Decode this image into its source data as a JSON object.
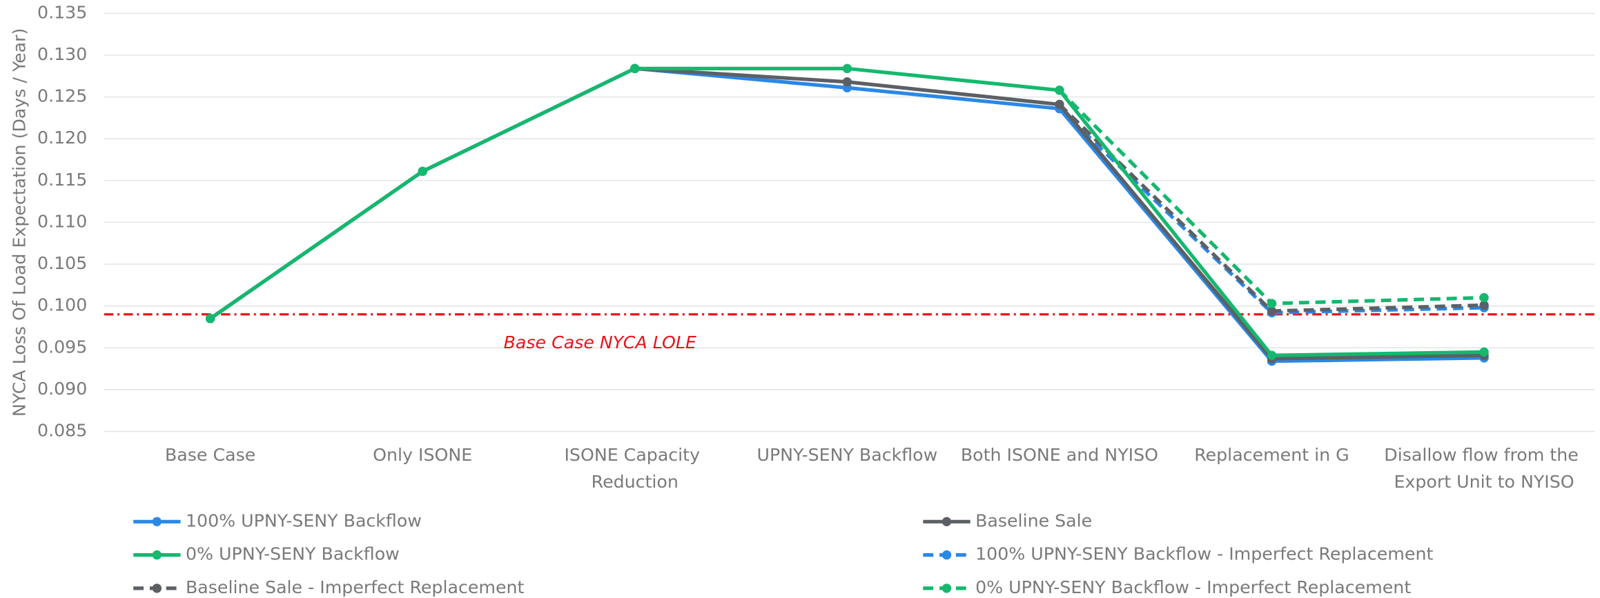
{
  "chart_data": {
    "type": "line",
    "ylabel": "NYCA Loss Of Load Expectation (Days / Year)",
    "categories": [
      "Base Case",
      "Only ISONE",
      "ISONE Capacity Reduction",
      "UPNY-SENY Backflow",
      "Both ISONE and NYISO",
      "Replacement in G",
      "Disallow flow from the Export Unit to NYISO"
    ],
    "series": [
      {
        "name": "100% UPNY-SENY Backflow",
        "color": "#2a88e6",
        "dashed": false,
        "values": [
          0.0985,
          0.1161,
          0.1284,
          0.1261,
          0.1236,
          0.0934,
          0.0938
        ]
      },
      {
        "name": "Baseline Sale",
        "color": "#5c6065",
        "dashed": false,
        "values": [
          0.0985,
          0.1161,
          0.1284,
          0.1268,
          0.1241,
          0.0937,
          0.0941
        ]
      },
      {
        "name": "0% UPNY-SENY Backflow",
        "color": "#14b86e",
        "dashed": false,
        "values": [
          0.0985,
          0.1161,
          0.1284,
          0.1284,
          0.1258,
          0.0941,
          0.0945
        ]
      },
      {
        "name": "100% UPNY-SENY Backflow - Imperfect Replacement",
        "color": "#2a88e6",
        "dashed": true,
        "values": [
          null,
          null,
          null,
          null,
          0.1236,
          0.0992,
          0.0998
        ]
      },
      {
        "name": "Baseline Sale - Imperfect Replacement",
        "color": "#5c6065",
        "dashed": true,
        "values": [
          null,
          null,
          null,
          null,
          0.1241,
          0.0994,
          0.1001
        ]
      },
      {
        "name": "0% UPNY-SENY Backflow - Imperfect Replacement",
        "color": "#14b86e",
        "dashed": true,
        "values": [
          null,
          null,
          null,
          null,
          0.1258,
          0.1003,
          0.101
        ]
      }
    ],
    "reference_line": {
      "value": 0.099,
      "label": "Base Case NYCA LOLE",
      "color": "#e8141a"
    },
    "ylim": [
      0.085,
      0.135
    ],
    "yticks": [
      {
        "value": 0.085,
        "label": "0.085"
      },
      {
        "value": 0.09,
        "label": "0.090"
      },
      {
        "value": 0.095,
        "label": "0.095"
      },
      {
        "value": 0.1,
        "label": "0.100"
      },
      {
        "value": 0.105,
        "label": "0.105"
      },
      {
        "value": 0.11,
        "label": "0.110"
      },
      {
        "value": 0.115,
        "label": "0.115"
      },
      {
        "value": 0.12,
        "label": "0.120"
      },
      {
        "value": 0.125,
        "label": "0.125"
      },
      {
        "value": 0.13,
        "label": "0.130"
      },
      {
        "value": 0.135,
        "label": "0.135"
      }
    ],
    "grid": true
  }
}
